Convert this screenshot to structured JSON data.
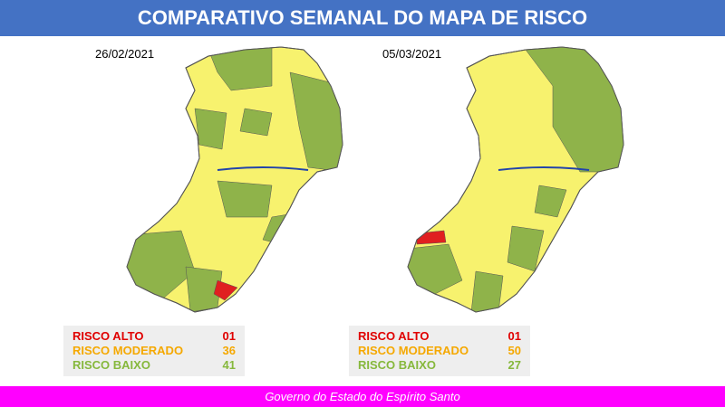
{
  "header": {
    "title": "COMPARATIVO SEMANAL DO MAPA DE RISCO"
  },
  "maps": [
    {
      "date": "26/02/2021",
      "legend": [
        {
          "label": "RISCO ALTO",
          "count": "01"
        },
        {
          "label": "RISCO MODERADO",
          "count": "36"
        },
        {
          "label": "RISCO BAIXO",
          "count": "41"
        }
      ]
    },
    {
      "date": "05/03/2021",
      "legend": [
        {
          "label": "RISCO ALTO",
          "count": "01"
        },
        {
          "label": "RISCO MODERADO",
          "count": "50"
        },
        {
          "label": "RISCO BAIXO",
          "count": "27"
        }
      ]
    }
  ],
  "footer": {
    "text": "Governo do Estado do Espírito Santo"
  }
}
